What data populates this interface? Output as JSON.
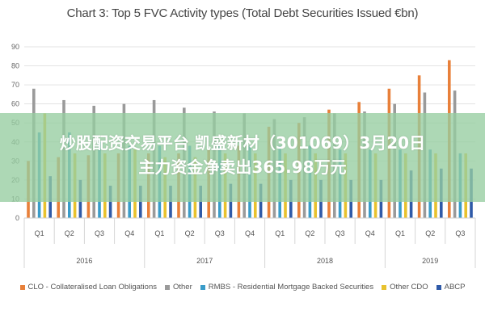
{
  "overlay": {
    "line1": "炒股配资交易平台 凯盛新材（301069）3月20日",
    "line2": "主力资金净卖出365.98万元"
  },
  "chart_data": {
    "type": "bar",
    "title": "Chart 3: Top 5 FVC Activity types (Total Debt Securities Issued €bn)",
    "xlabel": "",
    "ylabel": "",
    "ylim": [
      0,
      90
    ],
    "yticks": [
      0,
      10,
      20,
      30,
      40,
      50,
      60,
      70,
      80,
      90
    ],
    "grid": true,
    "legend_position": "bottom",
    "categories": [
      "Q1",
      "Q2",
      "Q3",
      "Q4",
      "Q1",
      "Q2",
      "Q3",
      "Q4",
      "Q1",
      "Q2",
      "Q3",
      "Q4",
      "Q1",
      "Q2",
      "Q3"
    ],
    "groups": [
      {
        "label": "2016",
        "count": 4
      },
      {
        "label": "2017",
        "count": 4
      },
      {
        "label": "2018",
        "count": 4
      },
      {
        "label": "2019",
        "count": 3
      }
    ],
    "series": [
      {
        "name": "CLO - Collateralised Loan Obligations",
        "color": "#e8803a",
        "values": [
          30,
          32,
          33,
          34,
          34,
          34,
          36,
          38,
          48,
          50,
          57,
          61,
          68,
          75,
          83
        ]
      },
      {
        "name": "Other",
        "color": "#9a9a9a",
        "values": [
          68,
          62,
          59,
          60,
          62,
          58,
          56,
          55,
          52,
          53,
          55,
          56,
          60,
          66,
          67
        ]
      },
      {
        "name": "RMBS - Residential Mortgage Backed Securities",
        "color": "#3a9cc9",
        "values": [
          45,
          45,
          40,
          38,
          38,
          38,
          38,
          38,
          38,
          38,
          36,
          36,
          36,
          36,
          34
        ]
      },
      {
        "name": "Other CDO",
        "color": "#e8c22e",
        "values": [
          55,
          34,
          34,
          36,
          32,
          32,
          34,
          34,
          34,
          34,
          34,
          34,
          34,
          34,
          34
        ]
      },
      {
        "name": "ABCP",
        "color": "#2f5aa8",
        "values": [
          22,
          20,
          17,
          17,
          17,
          17,
          18,
          18,
          20,
          20,
          20,
          20,
          25,
          26,
          26
        ]
      }
    ]
  }
}
